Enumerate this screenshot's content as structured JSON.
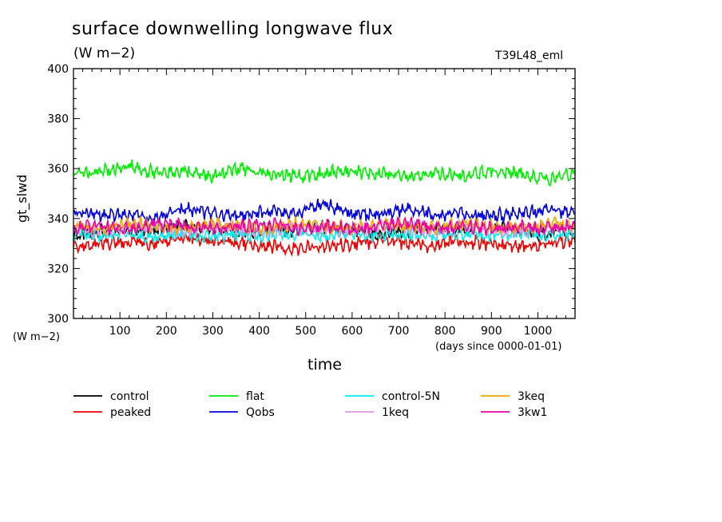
{
  "header": {
    "title": "surface downwelling longwave flux",
    "units": "(W m−2)",
    "run_name": "T39L48_eml"
  },
  "axes": {
    "xlabel": "time",
    "ylabel": "gt_slwd",
    "y_units": "(W m−2)",
    "x_units": "(days since 0000-01-01)"
  },
  "chart_data": {
    "type": "line",
    "title": "surface downwelling longwave flux",
    "xlabel": "time",
    "ylabel": "gt_slwd",
    "xlim": [
      0,
      1080
    ],
    "ylim": [
      300,
      400
    ],
    "x_ticks": [
      "100",
      "200",
      "300",
      "400",
      "500",
      "600",
      "700",
      "800",
      "900",
      "1000"
    ],
    "y_ticks": [
      "300",
      "320",
      "340",
      "360",
      "380",
      "400"
    ],
    "grid": false,
    "legend_position": "bottom",
    "x": [
      0,
      60,
      120,
      180,
      240,
      300,
      360,
      420,
      480,
      540,
      600,
      660,
      720,
      780,
      840,
      900,
      960,
      1020,
      1080
    ],
    "series": [
      {
        "name": "control",
        "color": "#000000",
        "values": [
          333,
          335,
          336,
          335,
          337,
          336,
          334,
          336,
          335,
          337,
          336,
          334,
          335,
          336,
          335,
          337,
          335,
          334,
          336
        ]
      },
      {
        "name": "peaked",
        "color": "#ee0000",
        "values": [
          329,
          330,
          331,
          330,
          332,
          331,
          330,
          329,
          328,
          329,
          330,
          331,
          330,
          329,
          331,
          330,
          329,
          330,
          331
        ]
      },
      {
        "name": "flat",
        "color": "#00ee00",
        "values": [
          358,
          359,
          361,
          358,
          359,
          357,
          360,
          358,
          357,
          358,
          359,
          358,
          357,
          358,
          357,
          359,
          358,
          356,
          358
        ]
      },
      {
        "name": "Qobs",
        "color": "#0000dd",
        "values": [
          343,
          341,
          342,
          340,
          344,
          342,
          341,
          343,
          342,
          346,
          342,
          341,
          344,
          341,
          342,
          341,
          342,
          344,
          342
        ]
      },
      {
        "name": "control-5N",
        "color": "#00eeee",
        "values": [
          334,
          333,
          334,
          332,
          334,
          333,
          334,
          333,
          334,
          333,
          334,
          333,
          334,
          333,
          334,
          333,
          334,
          333,
          334
        ]
      },
      {
        "name": "1keq",
        "color": "#dd99dd",
        "values": [
          336,
          335,
          337,
          336,
          335,
          337,
          336,
          335,
          337,
          336,
          335,
          337,
          336,
          335,
          337,
          336,
          335,
          337,
          336
        ]
      },
      {
        "name": "3keq",
        "color": "#eeaa00",
        "values": [
          337,
          336,
          338,
          337,
          336,
          338,
          337,
          336,
          338,
          337,
          336,
          338,
          337,
          336,
          338,
          337,
          336,
          338,
          337
        ]
      },
      {
        "name": "3kw1",
        "color": "#ee00aa",
        "values": [
          336,
          337,
          336,
          338,
          337,
          336,
          337,
          338,
          336,
          337,
          336,
          337,
          338,
          336,
          337,
          336,
          337,
          336,
          337
        ]
      }
    ]
  },
  "legend": [
    {
      "label": "control",
      "color": "#000000"
    },
    {
      "label": "peaked",
      "color": "#ee0000"
    },
    {
      "label": "flat",
      "color": "#00ee00"
    },
    {
      "label": "Qobs",
      "color": "#0000dd"
    },
    {
      "label": "control-5N",
      "color": "#00eeee"
    },
    {
      "label": "1keq",
      "color": "#dd99dd"
    },
    {
      "label": "3keq",
      "color": "#eeaa00"
    },
    {
      "label": "3kw1",
      "color": "#ee00aa"
    }
  ]
}
